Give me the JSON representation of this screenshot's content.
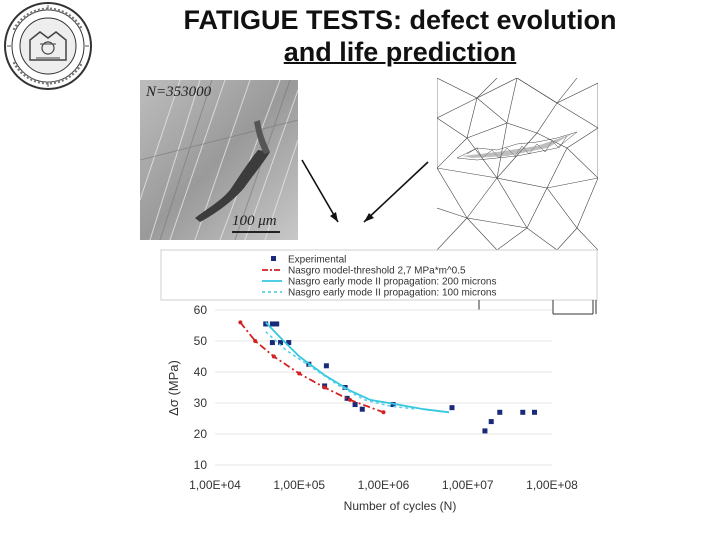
{
  "slide": {
    "title_line1": "FATIGUE TESTS: defect evolution",
    "title_line2": "and life prediction"
  },
  "micrograph": {
    "cycle_label": "N=353000",
    "scale_label": "100 μm"
  },
  "colors": {
    "experimental": "#1a2a7a",
    "threshold": "#d42020",
    "mode200": "#33c7e0",
    "mode100": "#5cd0e8"
  },
  "chart_data": {
    "type": "scatter",
    "xlabel": "Number of cycles (N)",
    "ylabel": "Δσ (MPa)",
    "x_scale": "log",
    "xlim": [
      10000,
      100000000
    ],
    "ylim": [
      10,
      60
    ],
    "x_ticks": [
      "1,00E+04",
      "1,00E+05",
      "1,00E+06",
      "1,00E+07",
      "1,00E+08"
    ],
    "y_ticks": [
      "10",
      "20",
      "30",
      "40",
      "50",
      "60"
    ],
    "legend": [
      "Experimental",
      "Nasgro model-threshold 2,7 MPa*m^0.5",
      "Nasgro early mode II propagation: 200 microns",
      "Nasgro early mode II propagation: 100 microns"
    ],
    "legend_position": "top",
    "series": [
      {
        "name": "Experimental",
        "style": "markers",
        "points": [
          [
            40000,
            55.5
          ],
          [
            48000,
            55.5
          ],
          [
            54000,
            55.5
          ],
          [
            48000,
            49.5
          ],
          [
            60000,
            49.5
          ],
          [
            75000,
            49.5
          ],
          [
            130000,
            42.5
          ],
          [
            210000,
            42
          ],
          [
            200000,
            35.5
          ],
          [
            350000,
            35
          ],
          [
            370000,
            31.5
          ],
          [
            460000,
            29.5
          ],
          [
            560000,
            28
          ],
          [
            1300000,
            29.5
          ],
          [
            6500000,
            28.5
          ],
          [
            16000000,
            21
          ],
          [
            19000000,
            24
          ],
          [
            24000000,
            27
          ],
          [
            45000000,
            27
          ],
          [
            62000000,
            27
          ]
        ]
      },
      {
        "name": "Nasgro model-threshold 2,7 MPa*m^0.5",
        "style": "dash-dot",
        "points": [
          [
            20000,
            56
          ],
          [
            30000,
            50
          ],
          [
            50000,
            45
          ],
          [
            100000,
            39.5
          ],
          [
            200000,
            35
          ],
          [
            400000,
            31
          ],
          [
            1000000,
            27
          ]
        ]
      },
      {
        "name": "Nasgro early mode II propagation: 200 microns",
        "style": "solid",
        "points": [
          [
            40000,
            56
          ],
          [
            60000,
            51
          ],
          [
            100000,
            45
          ],
          [
            200000,
            39
          ],
          [
            400000,
            34
          ],
          [
            700000,
            31
          ],
          [
            1500000,
            29.5
          ],
          [
            3000000,
            28
          ],
          [
            6000000,
            27
          ]
        ]
      },
      {
        "name": "Nasgro early mode II propagation: 100 microns",
        "style": "dotted",
        "points": [
          [
            40000,
            53
          ],
          [
            70000,
            47
          ],
          [
            150000,
            41
          ],
          [
            300000,
            35.5
          ],
          [
            600000,
            31
          ],
          [
            1200000,
            29
          ],
          [
            2500000,
            28
          ]
        ]
      }
    ]
  }
}
